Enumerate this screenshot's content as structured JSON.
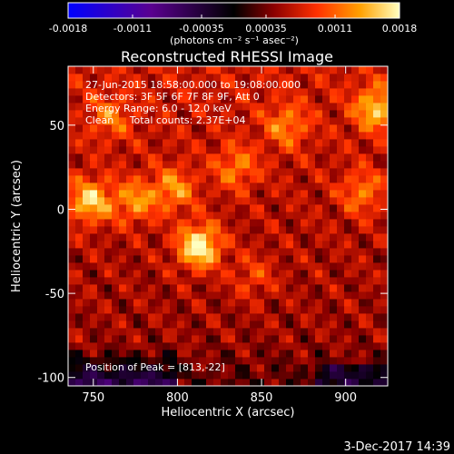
{
  "chart_data": {
    "type": "heatmap",
    "title": "Reconstructed RHESSI Image",
    "xlabel": "Heliocentric X (arcsec)",
    "ylabel": "Heliocentric Y (arcsec)",
    "xlim": [
      735,
      925
    ],
    "ylim": [
      -105,
      85
    ],
    "x_ticks": [
      750,
      800,
      850,
      900
    ],
    "y_ticks": [
      50,
      0,
      -50,
      -100
    ],
    "colorbar": {
      "range": [
        -0.0018,
        0.0018
      ],
      "tick_values": [
        -0.0018,
        -0.0011,
        -0.00035,
        0.00035,
        0.0011,
        0.0018
      ],
      "tick_labels": [
        "-0.0018",
        "-0.0011",
        "-0.00035",
        "0.00035",
        "0.0011",
        "0.0018"
      ],
      "unit": "(photons cm⁻² s⁻¹ asec⁻²)",
      "colormap_stops": [
        "#0000ff",
        "#5a0090",
        "#000000",
        "#8b0000",
        "#ff3000",
        "#ffa000",
        "#ffffc0"
      ]
    },
    "annotations": {
      "time_range": "27-Jun-2015 18:58:00.000 to 19:08:00.000",
      "detectors": "Detectors: 3F 5F 6F 7F 8F 9F, Att 0",
      "energy": "Energy Range: 6.0 - 12.0 keV",
      "clean": "Clean     Total counts: 2.37E+04",
      "peak": "Position of Peak = [813,-22]"
    },
    "peak": [
      813,
      -22
    ],
    "bright_spots": [
      {
        "x": 813,
        "y": -22,
        "value": 0.0018
      },
      {
        "x": 748,
        "y": 5,
        "value": 0.0015
      },
      {
        "x": 918,
        "y": 60,
        "value": 0.0014
      },
      {
        "x": 775,
        "y": 5,
        "value": 0.0012
      },
      {
        "x": 798,
        "y": 12,
        "value": 0.0012
      },
      {
        "x": 865,
        "y": 50,
        "value": 0.0011
      },
      {
        "x": 910,
        "y": 10,
        "value": 0.0011
      },
      {
        "x": 835,
        "y": 25,
        "value": 0.0011
      },
      {
        "x": 760,
        "y": 55,
        "value": 0.001
      },
      {
        "x": 845,
        "y": -40,
        "value": 0.0009
      }
    ]
  },
  "footer": {
    "date": "3-Dec-2017 14:39"
  }
}
